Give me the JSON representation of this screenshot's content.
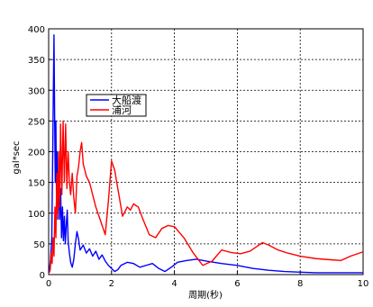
{
  "chart_data": {
    "type": "line",
    "title": "",
    "xlabel": "周期(秒)",
    "ylabel": "gal*sec",
    "xlim": [
      0,
      10
    ],
    "ylim": [
      0,
      400
    ],
    "xticks": [
      0,
      2,
      4,
      6,
      8,
      10
    ],
    "yticks": [
      0,
      50,
      100,
      150,
      200,
      250,
      300,
      350,
      400
    ],
    "grid": true,
    "legend_position": "upper-left-inside",
    "series": [
      {
        "name": "大船渡",
        "color": "#0000ff",
        "points": [
          [
            0.02,
            5
          ],
          [
            0.06,
            25
          ],
          [
            0.1,
            60
          ],
          [
            0.13,
            200
          ],
          [
            0.15,
            300
          ],
          [
            0.17,
            390
          ],
          [
            0.19,
            260
          ],
          [
            0.21,
            150
          ],
          [
            0.23,
            250
          ],
          [
            0.25,
            120
          ],
          [
            0.27,
            200
          ],
          [
            0.29,
            90
          ],
          [
            0.32,
            160
          ],
          [
            0.35,
            90
          ],
          [
            0.38,
            140
          ],
          [
            0.41,
            60
          ],
          [
            0.44,
            110
          ],
          [
            0.47,
            55
          ],
          [
            0.5,
            95
          ],
          [
            0.53,
            50
          ],
          [
            0.56,
            80
          ],
          [
            0.59,
            105
          ],
          [
            0.62,
            55
          ],
          [
            0.66,
            35
          ],
          [
            0.7,
            20
          ],
          [
            0.75,
            12
          ],
          [
            0.8,
            25
          ],
          [
            0.85,
            50
          ],
          [
            0.9,
            70
          ],
          [
            0.95,
            58
          ],
          [
            1.0,
            40
          ],
          [
            1.1,
            48
          ],
          [
            1.2,
            35
          ],
          [
            1.3,
            42
          ],
          [
            1.4,
            30
          ],
          [
            1.5,
            38
          ],
          [
            1.6,
            25
          ],
          [
            1.7,
            32
          ],
          [
            1.8,
            22
          ],
          [
            1.9,
            15
          ],
          [
            2.0,
            10
          ],
          [
            2.1,
            5
          ],
          [
            2.2,
            8
          ],
          [
            2.3,
            15
          ],
          [
            2.5,
            20
          ],
          [
            2.7,
            18
          ],
          [
            2.9,
            12
          ],
          [
            3.1,
            15
          ],
          [
            3.3,
            18
          ],
          [
            3.5,
            10
          ],
          [
            3.7,
            5
          ],
          [
            3.9,
            12
          ],
          [
            4.1,
            20
          ],
          [
            4.4,
            23
          ],
          [
            4.7,
            25
          ],
          [
            5.0,
            22
          ],
          [
            5.5,
            18
          ],
          [
            6.0,
            15
          ],
          [
            6.5,
            10
          ],
          [
            7.0,
            7
          ],
          [
            7.5,
            5
          ],
          [
            8.0,
            4
          ],
          [
            8.5,
            3
          ],
          [
            9.0,
            3
          ],
          [
            9.5,
            3
          ],
          [
            10.0,
            3
          ]
        ]
      },
      {
        "name": "浦河",
        "color": "#ff0000",
        "points": [
          [
            0.02,
            3
          ],
          [
            0.05,
            8
          ],
          [
            0.08,
            35
          ],
          [
            0.11,
            18
          ],
          [
            0.14,
            60
          ],
          [
            0.17,
            30
          ],
          [
            0.2,
            110
          ],
          [
            0.23,
            60
          ],
          [
            0.26,
            165
          ],
          [
            0.29,
            95
          ],
          [
            0.32,
            200
          ],
          [
            0.35,
            110
          ],
          [
            0.38,
            245
          ],
          [
            0.42,
            130
          ],
          [
            0.46,
            250
          ],
          [
            0.5,
            150
          ],
          [
            0.54,
            245
          ],
          [
            0.58,
            140
          ],
          [
            0.62,
            200
          ],
          [
            0.66,
            150
          ],
          [
            0.7,
            130
          ],
          [
            0.75,
            165
          ],
          [
            0.8,
            125
          ],
          [
            0.85,
            100
          ],
          [
            0.9,
            160
          ],
          [
            0.95,
            175
          ],
          [
            1.0,
            200
          ],
          [
            1.05,
            215
          ],
          [
            1.1,
            180
          ],
          [
            1.2,
            160
          ],
          [
            1.3,
            150
          ],
          [
            1.4,
            130
          ],
          [
            1.5,
            110
          ],
          [
            1.6,
            95
          ],
          [
            1.7,
            80
          ],
          [
            1.8,
            65
          ],
          [
            1.9,
            120
          ],
          [
            2.0,
            185
          ],
          [
            2.1,
            170
          ],
          [
            2.2,
            140
          ],
          [
            2.35,
            95
          ],
          [
            2.5,
            110
          ],
          [
            2.6,
            105
          ],
          [
            2.7,
            115
          ],
          [
            2.85,
            110
          ],
          [
            3.0,
            90
          ],
          [
            3.2,
            65
          ],
          [
            3.4,
            60
          ],
          [
            3.6,
            75
          ],
          [
            3.8,
            80
          ],
          [
            4.0,
            78
          ],
          [
            4.3,
            60
          ],
          [
            4.6,
            35
          ],
          [
            4.9,
            15
          ],
          [
            5.2,
            22
          ],
          [
            5.5,
            40
          ],
          [
            5.8,
            36
          ],
          [
            6.1,
            34
          ],
          [
            6.4,
            38
          ],
          [
            6.6,
            45
          ],
          [
            6.8,
            52
          ],
          [
            7.0,
            48
          ],
          [
            7.3,
            40
          ],
          [
            7.6,
            35
          ],
          [
            8.0,
            30
          ],
          [
            8.5,
            26
          ],
          [
            9.0,
            24
          ],
          [
            9.3,
            23
          ],
          [
            9.6,
            30
          ],
          [
            10.0,
            37
          ]
        ]
      }
    ]
  }
}
